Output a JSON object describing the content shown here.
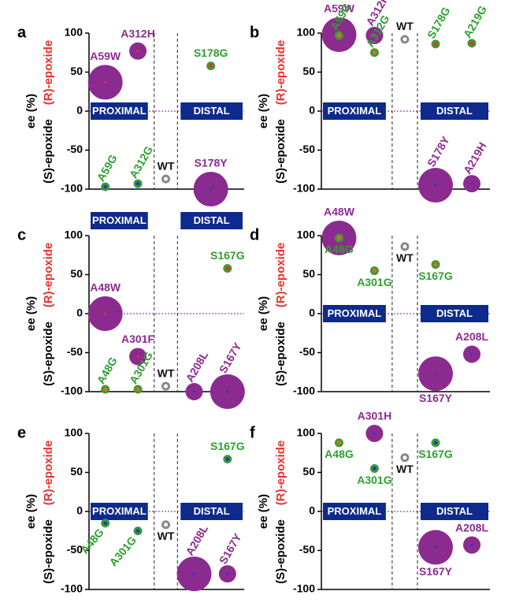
{
  "chart_data": [
    {
      "type": "bubble",
      "panel": "a",
      "ylabel": "ee (%)",
      "ylabel_top": "(R)-epoxide",
      "ylabel_bottom": "(S)-epoxide",
      "ylim": [
        -100,
        100
      ],
      "yticks": [
        -100,
        -50,
        0,
        50,
        100
      ],
      "region_labels": "zero",
      "groups": [
        {
          "label": "PROXIMAL",
          "columns": [
            [
              {
                "label": "A59W",
                "value": 37,
                "size": "large",
                "color": "#8b2b8f",
                "dot_color": "#e8312b",
                "label_color": "#8b2b8f"
              },
              {
                "label": "A59G",
                "value": -97,
                "size": "small",
                "color": "#3d9b35",
                "dot_color": "#1f3fbf",
                "label_color": "#2e9e2e",
                "rotated": true
              }
            ],
            [
              {
                "label": "A312H",
                "value": 77,
                "size": "medium",
                "color": "#8b2b8f",
                "dot_color": "#e8312b",
                "label_color": "#8b2b8f"
              },
              {
                "label": "A312G",
                "value": -93,
                "size": "small",
                "color": "#3d9b35",
                "dot_color": "#1f3fbf",
                "label_color": "#2e9e2e",
                "rotated": true
              }
            ]
          ]
        },
        {
          "columns": [
            [
              {
                "label": "WT",
                "value": -87,
                "size": "small",
                "color": "#888888",
                "hollow": true,
                "label_color": "#111111"
              }
            ]
          ]
        },
        {
          "label": "DISTAL",
          "columns": [
            [
              {
                "label": "S178G",
                "value": 58,
                "size": "small",
                "color": "#3d9b35",
                "dot_color": "#e8312b",
                "label_color": "#2e9e2e"
              },
              {
                "label": "S178Y",
                "value": -100,
                "size": "large",
                "color": "#8b2b8f",
                "dot_color": "#1f3fbf",
                "label_color": "#8b2b8f"
              }
            ]
          ]
        }
      ]
    },
    {
      "type": "bubble",
      "panel": "b",
      "ylabel": "ee (%)",
      "ylabel_top": "(R)-epoxide",
      "ylabel_bottom": "(S)-epoxide",
      "ylim": [
        -100,
        100
      ],
      "yticks": [
        -100,
        -50,
        0,
        50,
        100
      ],
      "region_labels": "zero",
      "groups": [
        {
          "label": "PROXIMAL",
          "columns": [
            [
              {
                "label": "A59W",
                "value": 98,
                "size": "large",
                "color": "#8b2b8f",
                "dot_color": "#f26522",
                "label_color": "#8b2b8f"
              },
              {
                "label": "A59G",
                "value": 97,
                "size": "small",
                "color": "#3d9b35",
                "dot_color": "#f26522",
                "label_color": "#2e9e2e",
                "rotated": true
              }
            ],
            [
              {
                "label": "A312H",
                "value": 97,
                "size": "medium",
                "color": "#8b2b8f",
                "dot_color": "#f26522",
                "label_color": "#8b2b8f",
                "rotated": true
              },
              {
                "label": "A312G",
                "value": 75,
                "size": "small",
                "color": "#3d9b35",
                "dot_color": "#f26522",
                "label_color": "#2e9e2e",
                "rotated": true
              }
            ]
          ]
        },
        {
          "columns": [
            [
              {
                "label": "WT",
                "value": 92,
                "size": "small",
                "color": "#888888",
                "hollow": true,
                "label_color": "#111111"
              }
            ]
          ]
        },
        {
          "label": "DISTAL",
          "columns": [
            [
              {
                "label": "S178G",
                "value": 86,
                "size": "small",
                "color": "#3d9b35",
                "dot_color": "#e8312b",
                "label_color": "#2e9e2e",
                "rotated": true
              },
              {
                "label": "S178Y",
                "value": -95,
                "size": "large",
                "color": "#8b2b8f",
                "dot_color": "#1f3fbf",
                "label_color": "#8b2b8f",
                "rotated": true
              }
            ],
            [
              {
                "label": "A219G",
                "value": 87,
                "size": "small",
                "color": "#3d9b35",
                "dot_color": "#e8312b",
                "label_color": "#2e9e2e",
                "rotated": true
              },
              {
                "label": "A219H",
                "value": -93,
                "size": "medium",
                "color": "#8b2b8f",
                "dot_color": "#1f3fbf",
                "label_color": "#8b2b8f",
                "rotated": true
              }
            ]
          ]
        }
      ]
    },
    {
      "type": "bubble",
      "panel": "c",
      "ylabel": "ee (%)",
      "ylabel_top": "(R)-epoxide",
      "ylabel_bottom": "(S)-epoxide",
      "ylim": [
        -100,
        100
      ],
      "yticks": [
        -100,
        -50,
        0,
        50,
        100
      ],
      "region_labels": "top",
      "groups": [
        {
          "label": "PROXIMAL",
          "columns": [
            [
              {
                "label": "A48W",
                "value": 0,
                "size": "large",
                "color": "#8b2b8f",
                "dot_color": "#e8312b",
                "label_color": "#8b2b8f"
              },
              {
                "label": "A48G",
                "value": -97,
                "size": "small",
                "color": "#3d9b35",
                "dot_color": "#f26522",
                "label_color": "#2e9e2e",
                "rotated": true
              }
            ],
            [
              {
                "label": "A301F",
                "value": -55,
                "size": "medium",
                "color": "#8b2b8f",
                "dot_color": "#e8312b",
                "label_color": "#8b2b8f"
              },
              {
                "label": "A301G",
                "value": -97,
                "size": "small",
                "color": "#3d9b35",
                "dot_color": "#f26522",
                "label_color": "#2e9e2e",
                "rotated": true
              }
            ]
          ]
        },
        {
          "columns": [
            [
              {
                "label": "WT",
                "value": -93,
                "size": "small",
                "color": "#888888",
                "hollow": true,
                "label_color": "#111111"
              }
            ]
          ]
        },
        {
          "label": "DISTAL",
          "columns": [
            [
              {
                "label": "A208L",
                "value": -100,
                "size": "medium",
                "color": "#8b2b8f",
                "dot_color": "#1f3fbf",
                "label_color": "#8b2b8f",
                "rotated": true
              }
            ],
            [
              {
                "label": "S167G",
                "value": 58,
                "size": "small",
                "color": "#3d9b35",
                "dot_color": "#e8312b",
                "label_color": "#2e9e2e"
              },
              {
                "label": "S167Y",
                "value": -100,
                "size": "large",
                "color": "#8b2b8f",
                "dot_color": "#1f3fbf",
                "label_color": "#8b2b8f",
                "rotated": true
              }
            ]
          ]
        }
      ]
    },
    {
      "type": "bubble",
      "panel": "d",
      "ylabel": "ee (%)",
      "ylabel_top": "(R)-epoxide",
      "ylabel_bottom": "(S)-epoxide",
      "ylim": [
        -100,
        100
      ],
      "yticks": [
        -100,
        -50,
        0,
        50,
        100
      ],
      "region_labels": "zero",
      "groups": [
        {
          "label": "PROXIMAL",
          "columns": [
            [
              {
                "label": "A48W",
                "value": 97,
                "size": "large",
                "color": "#8b2b8f",
                "dot_color": "#3d9b35",
                "label_color": "#8b2b8f"
              },
              {
                "label": "A48G",
                "value": 97,
                "size": "small",
                "color": "#3d9b35",
                "dot_color": "#f26522",
                "label_color": "#2e9e2e",
                "below": true
              }
            ],
            [
              {
                "label": "A301G",
                "value": 55,
                "size": "small",
                "color": "#3d9b35",
                "dot_color": "#f26522",
                "label_color": "#2e9e2e",
                "below": true
              }
            ]
          ]
        },
        {
          "columns": [
            [
              {
                "label": "WT",
                "value": 86,
                "size": "small",
                "color": "#888888",
                "hollow": true,
                "label_color": "#111111",
                "below": true
              }
            ]
          ]
        },
        {
          "label": "DISTAL",
          "columns": [
            [
              {
                "label": "S167G",
                "value": 63,
                "size": "small",
                "color": "#3d9b35",
                "dot_color": "#f26522",
                "label_color": "#2e9e2e",
                "below": true
              },
              {
                "label": "S167Y",
                "value": -77,
                "size": "large",
                "color": "#8b2b8f",
                "dot_color": "#1f3fbf",
                "label_color": "#8b2b8f",
                "below": true
              }
            ],
            [
              {
                "label": "A208L",
                "value": -52,
                "size": "medium",
                "color": "#8b2b8f",
                "dot_color": "#1f3fbf",
                "label_color": "#8b2b8f"
              }
            ]
          ]
        }
      ]
    },
    {
      "type": "bubble",
      "panel": "e",
      "ylabel": "ee (%)",
      "ylabel_top": "(R)-epoxide",
      "ylabel_bottom": "(S)-epoxide",
      "ylim": [
        -100,
        100
      ],
      "yticks": [
        -100,
        -50,
        0,
        50,
        100
      ],
      "region_labels": "zero",
      "groups": [
        {
          "label": "PROXIMAL",
          "columns": [
            [
              {
                "label": "A48G",
                "value": -15,
                "size": "small",
                "color": "#3d9b35",
                "dot_color": "#1f3fbf",
                "label_color": "#2e9e2e",
                "rotated": true,
                "below": true
              }
            ],
            [
              {
                "label": "A301G",
                "value": -25,
                "size": "small",
                "color": "#3d9b35",
                "dot_color": "#1f3fbf",
                "label_color": "#2e9e2e",
                "rotated": true,
                "below": true
              }
            ]
          ]
        },
        {
          "columns": [
            [
              {
                "label": "WT",
                "value": -17,
                "size": "small",
                "color": "#888888",
                "hollow": true,
                "label_color": "#111111",
                "below": true
              }
            ]
          ]
        },
        {
          "label": "DISTAL",
          "columns": [
            [
              {
                "label": "A208L",
                "value": -80,
                "size": "large",
                "color": "#8b2b8f",
                "dot_color": "#1f3fbf",
                "label_color": "#8b2b8f",
                "rotated": true
              }
            ],
            [
              {
                "label": "S167G",
                "value": 67,
                "size": "small",
                "color": "#3d9b35",
                "dot_color": "#1f3fbf",
                "label_color": "#2e9e2e"
              },
              {
                "label": "S167Y",
                "value": -80,
                "size": "medium",
                "color": "#8b2b8f",
                "dot_color": "#1f3fbf",
                "label_color": "#8b2b8f",
                "rotated": true
              }
            ]
          ]
        }
      ]
    },
    {
      "type": "bubble",
      "panel": "f",
      "ylabel": "ee (%)",
      "ylabel_top": "(R)-epoxide",
      "ylabel_bottom": "(S)-epoxide",
      "ylim": [
        -100,
        100
      ],
      "yticks": [
        -100,
        -50,
        0,
        50,
        100
      ],
      "region_labels": "zero",
      "groups": [
        {
          "label": "PROXIMAL",
          "columns": [
            [
              {
                "label": "A48G",
                "value": 88,
                "size": "small",
                "color": "#3d9b35",
                "dot_color": "#f26522",
                "label_color": "#2e9e2e",
                "below": true
              }
            ],
            [
              {
                "label": "A301H",
                "value": 100,
                "size": "medium",
                "color": "#8b2b8f",
                "dot_color": "#1f3fbf",
                "label_color": "#8b2b8f"
              },
              {
                "label": "A301G",
                "value": 55,
                "size": "small",
                "color": "#3d9b35",
                "dot_color": "#1f3fbf",
                "label_color": "#2e9e2e",
                "below": true
              }
            ]
          ]
        },
        {
          "columns": [
            [
              {
                "label": "WT",
                "value": 69,
                "size": "small",
                "color": "#888888",
                "hollow": true,
                "label_color": "#111111",
                "below": true
              }
            ]
          ]
        },
        {
          "label": "DISTAL",
          "columns": [
            [
              {
                "label": "S167G",
                "value": 88,
                "size": "small",
                "color": "#3d9b35",
                "dot_color": "#1f3fbf",
                "label_color": "#2e9e2e",
                "below": true
              },
              {
                "label": "S167Y",
                "value": -46,
                "size": "large",
                "color": "#8b2b8f",
                "dot_color": "#1f3fbf",
                "label_color": "#8b2b8f",
                "below": true
              }
            ],
            [
              {
                "label": "A208L",
                "value": -43,
                "size": "medium",
                "color": "#8b2b8f",
                "dot_color": "#1f3fbf",
                "label_color": "#8b2b8f"
              }
            ]
          ]
        }
      ]
    }
  ]
}
